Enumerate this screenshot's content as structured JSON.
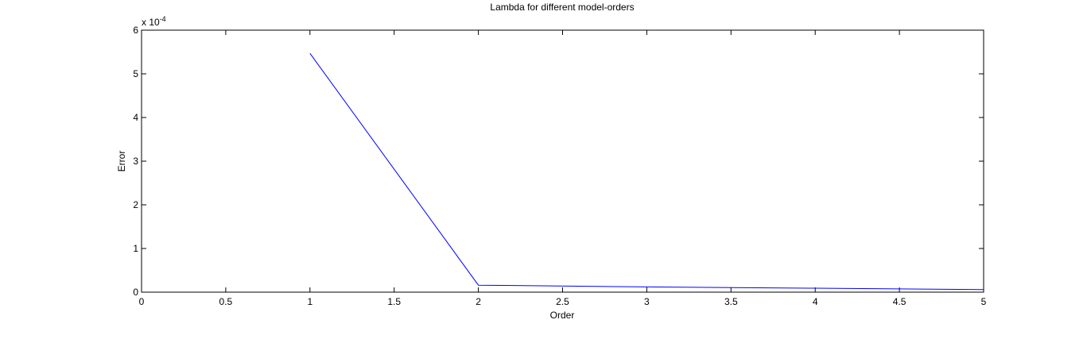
{
  "chart_data": {
    "type": "line",
    "title": "Lambda for different model-orders",
    "xlabel": "Order",
    "ylabel": "Error",
    "y_multiplier": {
      "base": "x 10",
      "exponent": "-4"
    },
    "xlim": [
      0,
      5
    ],
    "ylim": [
      0,
      6
    ],
    "x_ticks": [
      0,
      0.5,
      1,
      1.5,
      2,
      2.5,
      3,
      3.5,
      4,
      4.5,
      5
    ],
    "x_tick_labels": [
      "0",
      "0.5",
      "1",
      "1.5",
      "2",
      "2.5",
      "3",
      "3.5",
      "4",
      "4.5",
      "5"
    ],
    "y_ticks": [
      0,
      1,
      2,
      3,
      4,
      5,
      6
    ],
    "y_tick_labels": [
      "0",
      "1",
      "2",
      "3",
      "4",
      "5",
      "6"
    ],
    "grid": false,
    "legend": "none",
    "series": [
      {
        "color": "#0000ff",
        "x": [
          1,
          2,
          3,
          4,
          5
        ],
        "y": [
          5.47,
          0.16,
          0.12,
          0.09,
          0.06
        ]
      }
    ]
  }
}
